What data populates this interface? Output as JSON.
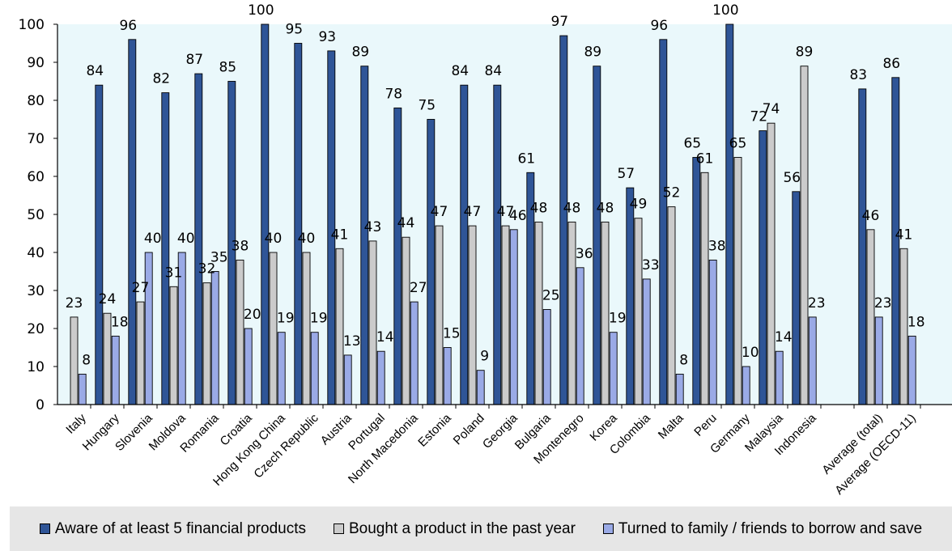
{
  "chart_data": {
    "type": "bar",
    "categories": [
      "Italy",
      "Hungary",
      "Slovenia",
      "Moldova",
      "Romania",
      "Croatia",
      "Hong Kong China",
      "Czech Republic",
      "Austria",
      "Portugal",
      "North Macedonia",
      "Estonia",
      "Poland",
      "Georgia",
      "Bulgaria",
      "Montenegro",
      "Korea",
      "Colombia",
      "Malta",
      "Peru",
      "Germany",
      "Malaysia",
      "Indonesia",
      "",
      "Average (total)",
      "Average (OECD-11)"
    ],
    "series": [
      {
        "name": "Aware of at least 5 financial products",
        "color": "#2f5597",
        "values": [
          null,
          84,
          96,
          82,
          87,
          85,
          100,
          95,
          93,
          89,
          78,
          75,
          84,
          84,
          61,
          97,
          89,
          57,
          96,
          65,
          100,
          72,
          56,
          null,
          83,
          86
        ]
      },
      {
        "name": "Bought a product in the past year",
        "color": "#cbcbcb",
        "values": [
          23,
          24,
          27,
          31,
          32,
          38,
          40,
          40,
          41,
          43,
          44,
          47,
          47,
          47,
          48,
          48,
          48,
          49,
          52,
          61,
          65,
          74,
          89,
          null,
          46,
          41
        ]
      },
      {
        "name": "Turned to family / friends to borrow and save",
        "color": "#9aaae6",
        "values": [
          8,
          18,
          40,
          40,
          35,
          20,
          19,
          19,
          13,
          14,
          27,
          15,
          9,
          46,
          25,
          36,
          19,
          33,
          8,
          38,
          10,
          14,
          23,
          null,
          23,
          18
        ]
      }
    ],
    "value_labels": [
      [
        null,
        "84",
        "96",
        "82",
        "87",
        "85",
        "100",
        "95",
        "93",
        "89",
        "78",
        "75",
        "84",
        "84",
        "61",
        "97",
        "89",
        "57",
        "96",
        "65",
        "100",
        "72",
        "56",
        null,
        "83",
        "86"
      ],
      [
        "23",
        "24",
        "27",
        "31",
        "32",
        "38",
        "40",
        "40",
        "41",
        "43",
        "44",
        "47",
        "47",
        "47",
        "48",
        "48",
        "48",
        "49",
        "52",
        "61",
        "65",
        "74",
        "89",
        null,
        "46",
        "41"
      ],
      [
        "8",
        "18",
        "40",
        "40",
        "35",
        "20",
        "19",
        "19",
        "13",
        "14",
        "27",
        "15",
        "9",
        "46",
        "25",
        "36",
        "19",
        "33",
        "8",
        "38",
        "10",
        "14",
        "23",
        null,
        "23",
        "18"
      ]
    ],
    "yticks": [
      "0",
      "10",
      "20",
      "30",
      "40",
      "50",
      "60",
      "70",
      "80",
      "90",
      "100"
    ],
    "ylim": [
      0,
      100
    ],
    "plot_background": "#eaf8fb",
    "grid": false,
    "legend_position": "bottom"
  }
}
